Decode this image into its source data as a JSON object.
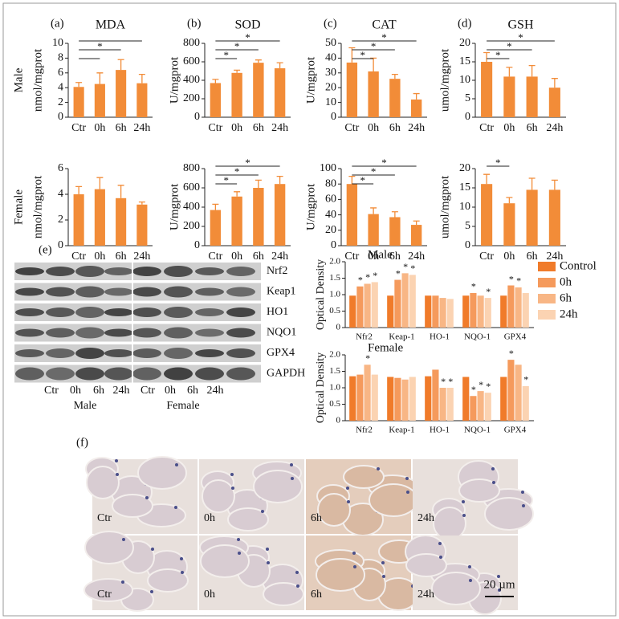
{
  "chart_data": [
    {
      "type": "bar",
      "panel": "(a)",
      "title": "MDA",
      "row_label": "Male",
      "ylabel": "nmol/mgprot",
      "categories": [
        "Ctr",
        "0h",
        "6h",
        "24h"
      ],
      "values": [
        4.1,
        4.5,
        6.4,
        4.6
      ],
      "errors": [
        0.6,
        1.5,
        1.4,
        1.2
      ],
      "color": "#f28c38",
      "ylim": [
        0,
        10
      ],
      "yticks": [
        0,
        2,
        4,
        6,
        8,
        10
      ],
      "brackets": [
        {
          "from": 0,
          "to": 3
        },
        {
          "from": 0,
          "to": 2,
          "label": "*"
        },
        {
          "from": 0,
          "to": 1
        }
      ]
    },
    {
      "type": "bar",
      "panel": "(b)",
      "title": "SOD",
      "ylabel": "U/mgprot",
      "categories": [
        "Ctr",
        "0h",
        "6h",
        "24h"
      ],
      "values": [
        370,
        480,
        590,
        530
      ],
      "errors": [
        40,
        30,
        30,
        60
      ],
      "color": "#f28c38",
      "ylim": [
        0,
        800
      ],
      "yticks": [
        0,
        200,
        400,
        600,
        800
      ],
      "brackets": [
        {
          "from": 0,
          "to": 3,
          "label": "*"
        },
        {
          "from": 0,
          "to": 2,
          "label": "*"
        },
        {
          "from": 0,
          "to": 1,
          "label": "*"
        }
      ]
    },
    {
      "type": "bar",
      "panel": "(c)",
      "title": "CAT",
      "ylabel": "U/mgprot",
      "categories": [
        "Ctr",
        "0h",
        "6h",
        "24h"
      ],
      "values": [
        37,
        31,
        26,
        12
      ],
      "errors": [
        10,
        9,
        3,
        4
      ],
      "color": "#f28c38",
      "ylim": [
        0,
        50
      ],
      "yticks": [
        0,
        10,
        20,
        30,
        40,
        50
      ],
      "brackets": [
        {
          "from": 0,
          "to": 3,
          "label": "*"
        },
        {
          "from": 0,
          "to": 2,
          "label": "*"
        },
        {
          "from": 0,
          "to": 1,
          "label": "*"
        }
      ]
    },
    {
      "type": "bar",
      "panel": "(d)",
      "title": "GSH",
      "ylabel": "umol/mgprot",
      "categories": [
        "Ctr",
        "0h",
        "6h",
        "24h"
      ],
      "values": [
        15,
        11,
        11,
        8
      ],
      "errors": [
        2.5,
        2.5,
        3,
        2.5
      ],
      "color": "#f28c38",
      "ylim": [
        0,
        20
      ],
      "yticks": [
        0,
        5,
        10,
        15,
        20
      ],
      "brackets": [
        {
          "from": 0,
          "to": 3,
          "label": "*"
        },
        {
          "from": 0,
          "to": 2,
          "label": "*"
        },
        {
          "from": 0,
          "to": 1,
          "label": "*"
        }
      ]
    },
    {
      "type": "bar",
      "row_label": "Female",
      "ylabel": "nmol/mgprot",
      "categories": [
        "Ctr",
        "0h",
        "6h",
        "24h"
      ],
      "values": [
        4.0,
        4.4,
        3.7,
        3.2
      ],
      "errors": [
        0.6,
        0.9,
        1.0,
        0.2
      ],
      "color": "#f28c38",
      "ylim": [
        0,
        6
      ],
      "yticks": [
        0,
        2,
        4,
        6
      ]
    },
    {
      "type": "bar",
      "ylabel": "U/mgprot",
      "categories": [
        "Ctr",
        "0h",
        "6h",
        "24h"
      ],
      "values": [
        370,
        510,
        600,
        640
      ],
      "errors": [
        60,
        50,
        80,
        80
      ],
      "color": "#f28c38",
      "ylim": [
        0,
        800
      ],
      "yticks": [
        0,
        200,
        400,
        600,
        800
      ],
      "brackets": [
        {
          "from": 0,
          "to": 3,
          "label": "*"
        },
        {
          "from": 0,
          "to": 2,
          "label": "*"
        },
        {
          "from": 0,
          "to": 1,
          "label": "*"
        }
      ]
    },
    {
      "type": "bar",
      "ylabel": "U/mgprot",
      "categories": [
        "Ctr",
        "0h",
        "6h",
        "24h"
      ],
      "values": [
        80,
        41,
        37,
        27
      ],
      "errors": [
        10,
        8,
        7,
        5
      ],
      "color": "#f28c38",
      "ylim": [
        0,
        100
      ],
      "yticks": [
        0,
        20,
        40,
        60,
        80,
        100
      ],
      "brackets": [
        {
          "from": 0,
          "to": 3,
          "label": "*"
        },
        {
          "from": 0,
          "to": 2,
          "label": "*"
        },
        {
          "from": 0,
          "to": 1,
          "label": "*"
        }
      ]
    },
    {
      "type": "bar",
      "ylabel": "umol/mgprot",
      "categories": [
        "Ctr",
        "0h",
        "6h",
        "24h"
      ],
      "values": [
        16,
        11,
        14.5,
        14.5
      ],
      "errors": [
        2.5,
        1.5,
        3,
        2.5
      ],
      "color": "#f28c38",
      "ylim": [
        0,
        20
      ],
      "yticks": [
        0,
        5,
        10,
        15,
        20
      ],
      "brackets": [
        {
          "from": 0,
          "to": 1,
          "label": "*"
        }
      ]
    },
    {
      "type": "grouped_bar",
      "title": "Male",
      "ylabel": "Optical Density",
      "legend": "right",
      "categories": [
        "Nfr2",
        "Keap-1",
        "HO-1",
        "NQO-1",
        "GPX4"
      ],
      "ylim": [
        0,
        2
      ],
      "yticks": [
        0,
        0.5,
        {
          "value": 1,
          "label": "1.0"
        },
        1.5,
        {
          "value": 2,
          "label": "2.0"
        }
      ],
      "series": [
        {
          "name": "Control",
          "color": "#f07b2a",
          "values": [
            0.97,
            0.97,
            0.97,
            0.97,
            0.97
          ],
          "significance": [
            null,
            null,
            null,
            null,
            null
          ]
        },
        {
          "name": "0h",
          "color": "#f59a5c",
          "values": [
            1.25,
            1.45,
            0.97,
            1.05,
            1.28
          ],
          "significance": [
            "*",
            "*",
            null,
            "*",
            "*"
          ]
        },
        {
          "name": "6h",
          "color": "#f8b685",
          "values": [
            1.33,
            1.65,
            0.9,
            0.97,
            1.22
          ],
          "significance": [
            "*",
            "*",
            null,
            null,
            "*"
          ]
        },
        {
          "name": "24h",
          "color": "#fbd3b2",
          "values": [
            1.38,
            1.6,
            0.87,
            0.9,
            1.05
          ],
          "significance": [
            "*",
            "*",
            null,
            "*",
            null
          ]
        }
      ]
    },
    {
      "type": "grouped_bar",
      "title": "Female",
      "ylabel": "Optical Density",
      "categories": [
        "Nfr2",
        "Keap-1",
        "HO-1",
        "NQO-1",
        "GPX4"
      ],
      "ylim": [
        0,
        2
      ],
      "yticks": [
        0,
        0.5,
        {
          "value": 1,
          "label": "1.0"
        },
        1.5,
        {
          "value": 2,
          "label": "2.0"
        }
      ],
      "series": [
        {
          "name": "Control",
          "color": "#f07b2a",
          "values": [
            1.35,
            1.33,
            1.35,
            1.33,
            1.33
          ],
          "significance": [
            null,
            null,
            null,
            null,
            null
          ]
        },
        {
          "name": "0h",
          "color": "#f59a5c",
          "values": [
            1.4,
            1.3,
            1.55,
            0.75,
            1.85
          ],
          "significance": [
            null,
            null,
            null,
            "*",
            "*"
          ]
        },
        {
          "name": "6h",
          "color": "#f8b685",
          "values": [
            1.7,
            1.25,
            1.0,
            0.9,
            1.7
          ],
          "significance": [
            "*",
            null,
            "*",
            "*",
            null
          ]
        },
        {
          "name": "24h",
          "color": "#fbd3b2",
          "values": [
            1.4,
            1.33,
            1.0,
            0.85,
            1.05
          ],
          "significance": [
            null,
            null,
            "*",
            "*",
            "*"
          ]
        }
      ]
    }
  ],
  "panel_e": {
    "label": "(e)",
    "proteins": [
      "Nrf2",
      "Keap1",
      "HO1",
      "NQO1",
      "GPX4",
      "GAPDH"
    ],
    "lanes": [
      "Ctr",
      "0h",
      "6h",
      "24h",
      "Ctr",
      "0h",
      "6h",
      "24h"
    ],
    "groups": [
      "Male",
      "Female"
    ]
  },
  "panel_f": {
    "label": "(f)",
    "tiles": [
      "Ctr",
      "0h",
      "6h",
      "24h",
      "Ctr",
      "0h",
      "6h",
      "24h"
    ],
    "scale_bar": "20 µm"
  }
}
